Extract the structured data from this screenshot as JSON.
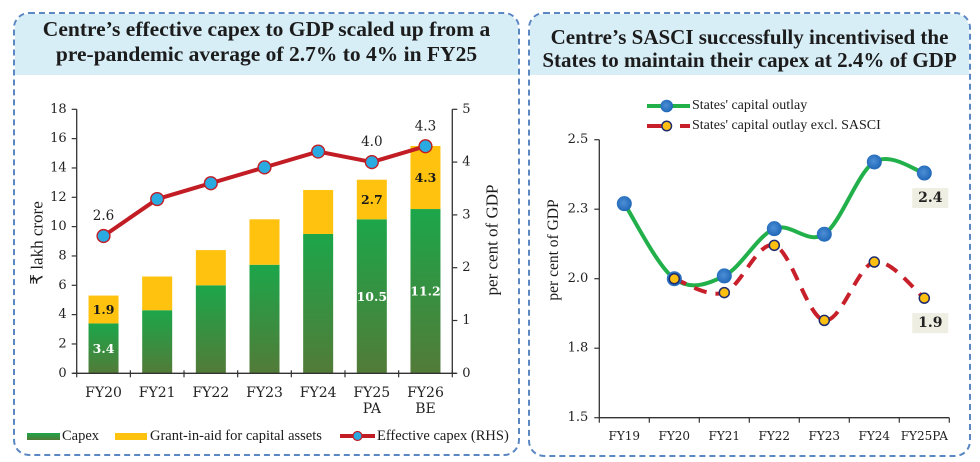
{
  "panels": {
    "left": {
      "title_lines": [
        "Centre’s effective capex to GDP scaled up from a",
        "pre-pandemic average of 2.7% to 4% in FY25"
      ]
    },
    "right": {
      "title_lines": [
        "Centre’s SASCI successfully incentivised the",
        "States to maintain their capex at 2.4% of GDP"
      ]
    }
  },
  "colors": {
    "panel_border": "#5b87c3",
    "header_bg": "#d7eef7",
    "axis": "#333333"
  },
  "chart_data": [
    {
      "type": "bar",
      "subtype": "stacked bar with line on secondary axis",
      "title": "Centre’s effective capex to GDP scaled up from a pre-pandemic average of 2.7% to 4% in FY25",
      "categories": [
        "FY20",
        "FY21",
        "FY22",
        "FY23",
        "FY24",
        "FY25 PA",
        "FY26 BE"
      ],
      "category_labels": [
        [
          "FY20"
        ],
        [
          "FY21"
        ],
        [
          "FY22"
        ],
        [
          "FY23"
        ],
        [
          "FY24"
        ],
        [
          "FY25",
          "PA"
        ],
        [
          "FY26",
          "BE"
        ]
      ],
      "xlabel": "",
      "ylabel": "₹ lakh crore",
      "y2label": "per cent of GDP",
      "ylim": [
        0,
        18
      ],
      "y2lim": [
        0,
        5
      ],
      "yticks": [
        0,
        2,
        4,
        6,
        8,
        10,
        12,
        14,
        16,
        18
      ],
      "y2ticks": [
        0,
        1,
        2,
        3,
        4,
        5
      ],
      "grid": false,
      "legend": "bottom",
      "series": [
        {
          "name": "Capex",
          "type": "bar",
          "axis": "left",
          "stack": "total",
          "color": "#1ca64a",
          "color_bottom": "#527b38",
          "label_color": "#ffffff",
          "values": [
            3.4,
            4.3,
            6.0,
            7.4,
            9.5,
            10.5,
            11.2
          ],
          "data_labels": [
            "3.4",
            null,
            null,
            null,
            null,
            "10.5",
            "11.2"
          ]
        },
        {
          "name": "Grant-in-aid for capital assets",
          "type": "bar",
          "axis": "left",
          "stack": "total",
          "color": "#ffc20e",
          "label_color": "#1a1a1a",
          "values": [
            1.9,
            2.3,
            2.4,
            3.1,
            3.0,
            2.7,
            4.3
          ],
          "data_labels": [
            "1.9",
            null,
            null,
            null,
            null,
            "2.7",
            "4.3"
          ]
        },
        {
          "name": "Effective capex (RHS)",
          "type": "line",
          "axis": "right",
          "color": "#c21c24",
          "marker_color": "#29abe2",
          "values": [
            2.6,
            3.3,
            3.6,
            3.9,
            4.2,
            4.0,
            4.3
          ],
          "data_labels": [
            "2.6",
            null,
            null,
            null,
            null,
            "4.0",
            "4.3"
          ]
        }
      ]
    },
    {
      "type": "line",
      "title": "Centre’s SASCI successfully incentivised the States to maintain their capex at 2.4% of GDP",
      "categories": [
        "FY19",
        "FY20",
        "FY21",
        "FY22",
        "FY23",
        "FY24",
        "FY25PA"
      ],
      "xlabel": "",
      "ylabel": "per cent of GDP",
      "ylim": [
        1.5,
        2.5
      ],
      "yticks": [
        {
          "value": 1.5,
          "label": "1.5"
        },
        {
          "value": 1.75,
          "label": "1.8"
        },
        {
          "value": 2.0,
          "label": "2.0"
        },
        {
          "value": 2.25,
          "label": "2.3"
        },
        {
          "value": 2.5,
          "label": "2.5"
        }
      ],
      "grid": false,
      "legend": "top",
      "smooth": true,
      "label_box_color": "#eeeee2",
      "series": [
        {
          "name": "States' capital outlay",
          "line_style": "solid",
          "color": "#22b04b",
          "marker_color": "#1f6dbf",
          "values": [
            2.27,
            2.0,
            2.01,
            2.18,
            2.16,
            2.42,
            2.38
          ],
          "data_labels": [
            null,
            null,
            null,
            null,
            null,
            null,
            "2.4"
          ]
        },
        {
          "name": "States' capital outlay excl. SASCI",
          "line_style": "dashed",
          "color": "#c8202a",
          "marker_color": "#fdc010",
          "marker_edge": "#1e2a6e",
          "values": [
            null,
            2.0,
            1.95,
            2.12,
            1.85,
            2.06,
            1.93
          ],
          "data_labels": [
            null,
            null,
            null,
            null,
            null,
            null,
            "1.9"
          ]
        }
      ]
    }
  ]
}
